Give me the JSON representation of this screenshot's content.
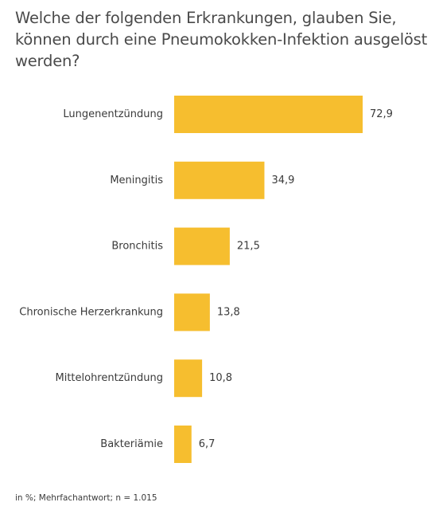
{
  "title": "Welche der folgenden Erkrankungen, glauben Sie, können durch eine Pneumokokken-Infektion ausgelöst werden?",
  "footnote": "in %; Mehrfachantwort;  n = 1.015",
  "colors": {
    "bar": "#f6be2f",
    "label_text": "#3a3a3a"
  },
  "chart_data": {
    "type": "bar",
    "orientation": "horizontal",
    "title": "Welche der folgenden Erkrankungen, glauben Sie, können durch eine Pneumokokken-Infektion ausgelöst werden?",
    "categories": [
      "Lungenentzündung",
      "Meningitis",
      "Bronchitis",
      "Chronische Herzerkrankung",
      "Mittelohrentzündung",
      "Bakteriämie"
    ],
    "values": [
      72.9,
      34.9,
      21.5,
      13.8,
      10.8,
      6.7
    ],
    "value_labels": [
      "72,9",
      "34,9",
      "21,5",
      "13,8",
      "10,8",
      "6,7"
    ],
    "xlim": [
      0,
      72.9
    ],
    "grid": false,
    "legend": "none"
  }
}
